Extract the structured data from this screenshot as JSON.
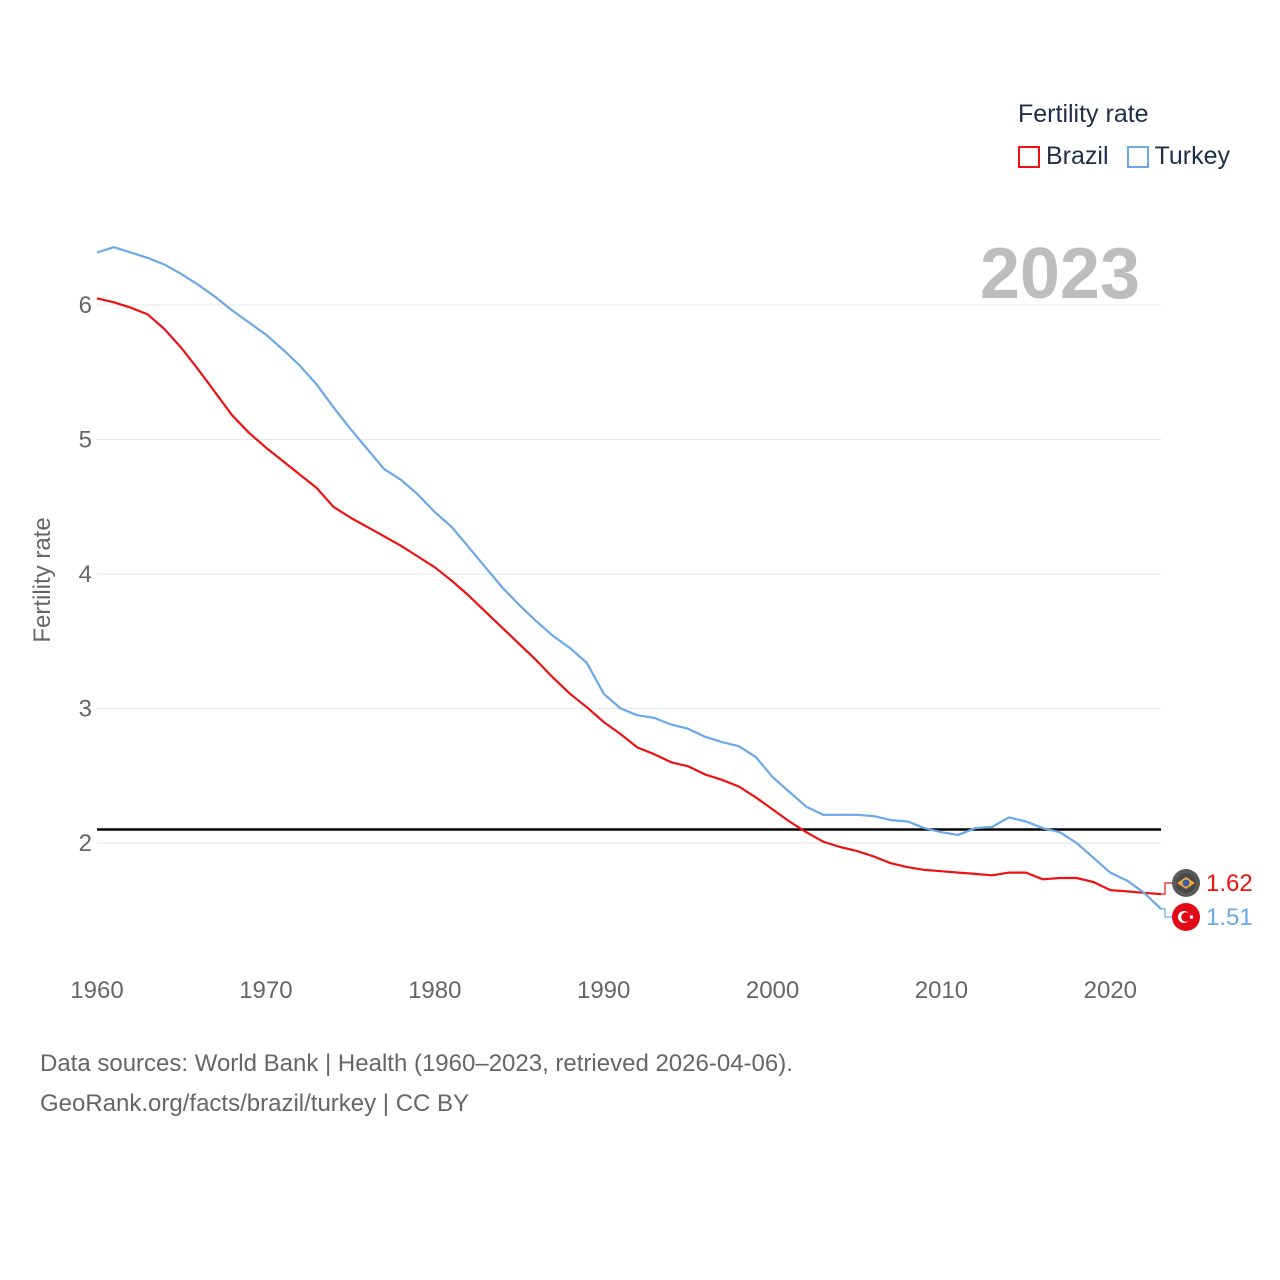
{
  "legend": {
    "title": "Fertility rate",
    "items": [
      {
        "label": "Brazil",
        "color": "#ee1111"
      },
      {
        "label": "Turkey",
        "color": "#6aa8e8"
      }
    ]
  },
  "year_badge": "2023",
  "footer": {
    "line1": "Data sources: World Bank | Health (1960–2023, retrieved 2026-04-06).",
    "line2": "GeoRank.org/facts/brazil/turkey | CC BY"
  },
  "colors": {
    "brazil": "#ee1111",
    "turkey": "#6aa8e8",
    "grid": "#e6e6e6",
    "reference": "#000000",
    "axis_text": "#666666",
    "year_badge": "#bdbdbd"
  },
  "chart_data": {
    "type": "line",
    "title": "",
    "xlabel": "",
    "ylabel": "Fertility rate",
    "xlim": [
      1960,
      2023
    ],
    "ylim": [
      1.2,
      6.6
    ],
    "x_ticks": [
      1960,
      1970,
      1980,
      1990,
      2000,
      2010,
      2020
    ],
    "y_ticks": [
      2,
      3,
      4,
      5,
      6
    ],
    "grid": true,
    "reference_line": {
      "value": 2.1
    },
    "x": [
      1960,
      1961,
      1962,
      1963,
      1964,
      1965,
      1966,
      1967,
      1968,
      1969,
      1970,
      1971,
      1972,
      1973,
      1974,
      1975,
      1976,
      1977,
      1978,
      1979,
      1980,
      1981,
      1982,
      1983,
      1984,
      1985,
      1986,
      1987,
      1988,
      1989,
      1990,
      1991,
      1992,
      1993,
      1994,
      1995,
      1996,
      1997,
      1998,
      1999,
      2000,
      2001,
      2002,
      2003,
      2004,
      2005,
      2006,
      2007,
      2008,
      2009,
      2010,
      2011,
      2012,
      2013,
      2014,
      2015,
      2016,
      2017,
      2018,
      2019,
      2020,
      2021,
      2022,
      2023
    ],
    "series": [
      {
        "name": "Brazil",
        "end_label": "1.62",
        "values": [
          6.05,
          6.02,
          5.98,
          5.93,
          5.82,
          5.68,
          5.52,
          5.35,
          5.18,
          5.05,
          4.94,
          4.84,
          4.74,
          4.64,
          4.5,
          4.42,
          4.35,
          4.28,
          4.21,
          4.13,
          4.05,
          3.95,
          3.84,
          3.72,
          3.6,
          3.48,
          3.36,
          3.23,
          3.11,
          3.01,
          2.9,
          2.81,
          2.71,
          2.66,
          2.6,
          2.57,
          2.51,
          2.47,
          2.42,
          2.34,
          2.25,
          2.16,
          2.08,
          2.01,
          1.97,
          1.94,
          1.9,
          1.85,
          1.82,
          1.8,
          1.79,
          1.78,
          1.77,
          1.76,
          1.78,
          1.78,
          1.73,
          1.74,
          1.74,
          1.71,
          1.65,
          1.64,
          1.63,
          1.62
        ]
      },
      {
        "name": "Turkey",
        "end_label": "1.51",
        "values": [
          6.39,
          6.43,
          6.39,
          6.35,
          6.3,
          6.23,
          6.15,
          6.06,
          5.96,
          5.87,
          5.78,
          5.67,
          5.55,
          5.41,
          5.24,
          5.08,
          4.93,
          4.78,
          4.7,
          4.59,
          4.46,
          4.35,
          4.2,
          4.05,
          3.9,
          3.77,
          3.65,
          3.54,
          3.45,
          3.34,
          3.11,
          3.0,
          2.95,
          2.93,
          2.88,
          2.85,
          2.79,
          2.75,
          2.72,
          2.64,
          2.49,
          2.38,
          2.27,
          2.21,
          2.21,
          2.21,
          2.2,
          2.17,
          2.16,
          2.11,
          2.08,
          2.06,
          2.11,
          2.12,
          2.19,
          2.16,
          2.11,
          2.08,
          2.0,
          1.89,
          1.78,
          1.72,
          1.63,
          1.51
        ]
      }
    ]
  }
}
